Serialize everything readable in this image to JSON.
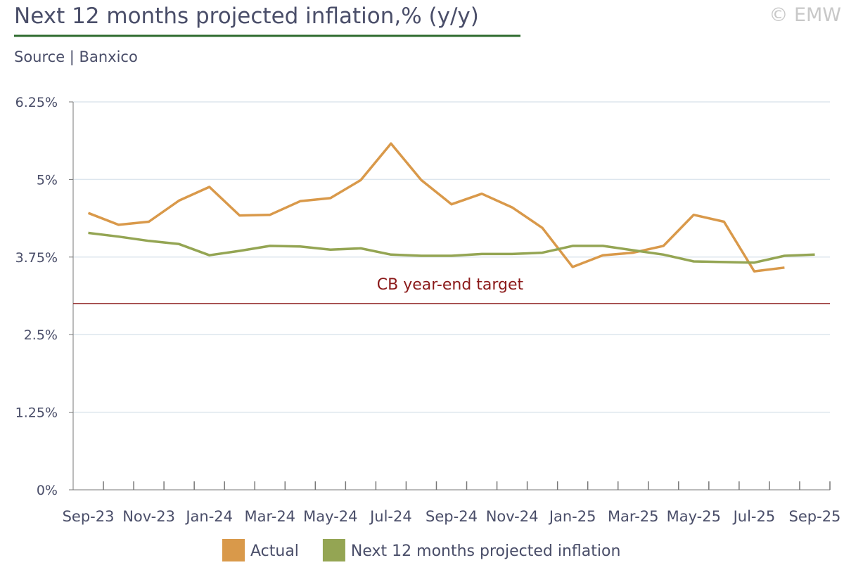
{
  "chart_data": {
    "type": "line",
    "title": "Next 12 months projected inflation,% (y/y)",
    "subtitle": "Source | Banxico",
    "credit": "© EMW",
    "categories": [
      "Sep-23",
      null,
      "Nov-23",
      null,
      "Jan-24",
      null,
      "Mar-24",
      null,
      "May-24",
      null,
      "Jul-24",
      null,
      "Sep-24",
      null,
      "Nov-24",
      null,
      "Jan-25",
      null,
      "Mar-25",
      null,
      "May-25",
      null,
      "Jul-25",
      null,
      "Sep-25"
    ],
    "series": [
      {
        "name": "Actual",
        "color": "#d9994a",
        "values": [
          4.46,
          4.27,
          4.32,
          4.66,
          4.88,
          4.42,
          4.43,
          4.65,
          4.7,
          4.99,
          5.58,
          4.99,
          4.6,
          4.77,
          4.55,
          4.22,
          3.59,
          3.78,
          3.82,
          3.93,
          4.43,
          4.32,
          3.52,
          3.58,
          null
        ]
      },
      {
        "name": "Next 12 months projected inflation",
        "color": "#94a553",
        "values": [
          4.14,
          4.08,
          4.01,
          3.96,
          3.78,
          3.85,
          3.93,
          3.92,
          3.87,
          3.89,
          3.79,
          3.77,
          3.77,
          3.8,
          3.8,
          3.82,
          3.93,
          3.93,
          3.86,
          3.79,
          3.68,
          3.67,
          3.66,
          3.77,
          3.79
        ]
      }
    ],
    "target": {
      "value": 3,
      "label": "CB year-end target",
      "color": "#8b1a1a"
    },
    "ylim": [
      0,
      6.25
    ],
    "yticks": [
      {
        "value": 0,
        "label": "0%"
      },
      {
        "value": 1.25,
        "label": "1.25%"
      },
      {
        "value": 2.5,
        "label": "2.5%"
      },
      {
        "value": 3.75,
        "label": "3.75%"
      },
      {
        "value": 5,
        "label": "5%"
      },
      {
        "value": 6.25,
        "label": "6.25%"
      }
    ],
    "grid": true
  }
}
